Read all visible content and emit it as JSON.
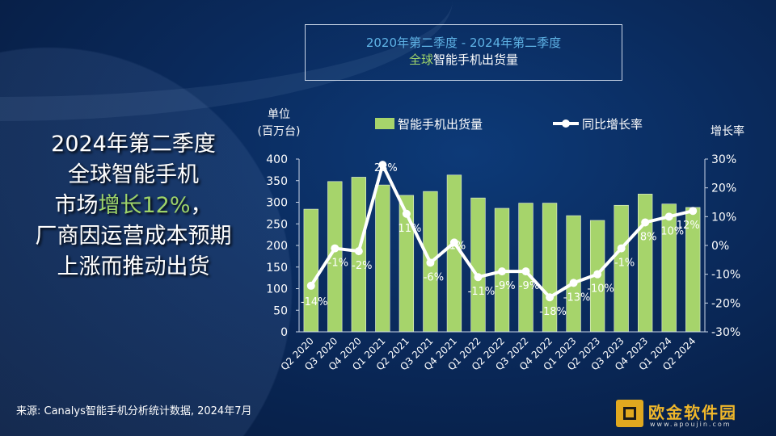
{
  "title": {
    "line1": "2020年第二季度 - 2024年第二季度",
    "line2_highlight": "全球",
    "line2_rest": "智能手机出货量"
  },
  "headline": {
    "line1": "2024年第二季度",
    "line2": "全球智能手机",
    "line3_a": "市场",
    "line3_highlight": "增长12%",
    "line3_b": "，",
    "line4": "厂商因运营成本预期",
    "line5": "上涨而推动出货"
  },
  "source": "来源: Canalys智能手机分析统计数据, 2024年7月",
  "logo": {
    "name": "欧金软件园",
    "url": "www.apoujin.com"
  },
  "colors": {
    "bar": "#a6d46b",
    "line": "#ffffff",
    "title_accent": "#5fb3e6",
    "highlight": "#9ed36a"
  },
  "chart_data": {
    "type": "bar+line",
    "categories": [
      "Q2 2020",
      "Q3 2020",
      "Q4 2020",
      "Q1 2021",
      "Q2 2021",
      "Q3 2021",
      "Q4 2021",
      "Q1 2022",
      "Q2 2022",
      "Q3 2022",
      "Q4 2022",
      "Q1 2023",
      "Q2 2023",
      "Q3 2023",
      "Q4 2023",
      "Q1 2024",
      "Q2 2024"
    ],
    "series": [
      {
        "name": "智能手机出货量",
        "type": "bar",
        "axis": "left",
        "values": [
          284,
          348,
          358,
          340,
          316,
          325,
          363,
          310,
          286,
          298,
          298,
          269,
          258,
          293,
          319,
          296,
          288
        ]
      },
      {
        "name": "同比增长率",
        "type": "line",
        "axis": "right",
        "values": [
          -14,
          -1,
          -2,
          28,
          11,
          -6,
          1,
          -11,
          -9,
          -9,
          -18,
          -13,
          -10,
          -1,
          8,
          10,
          12
        ],
        "labels": [
          "-14%",
          "-1%",
          "-2%",
          "28%",
          "11%",
          "-6%",
          "1%",
          "-11%",
          "-9%",
          "-9%",
          "-18%",
          "-13%",
          "-10%",
          "-1%",
          "8%",
          "10%",
          "12%"
        ]
      }
    ],
    "ylabel_left": [
      "单位",
      "(百万台)"
    ],
    "ylabel_right": "增长率",
    "ylim_left": [
      0,
      400
    ],
    "yticks_left": [
      "0",
      "50",
      "100",
      "150",
      "200",
      "250",
      "300",
      "350",
      "400"
    ],
    "ylim_right": [
      -30,
      30
    ],
    "yticks_right": [
      "-30%",
      "-20%",
      "-10%",
      "0%",
      "10%",
      "20%",
      "30%"
    ],
    "legend_placement": "top",
    "grid": false
  }
}
